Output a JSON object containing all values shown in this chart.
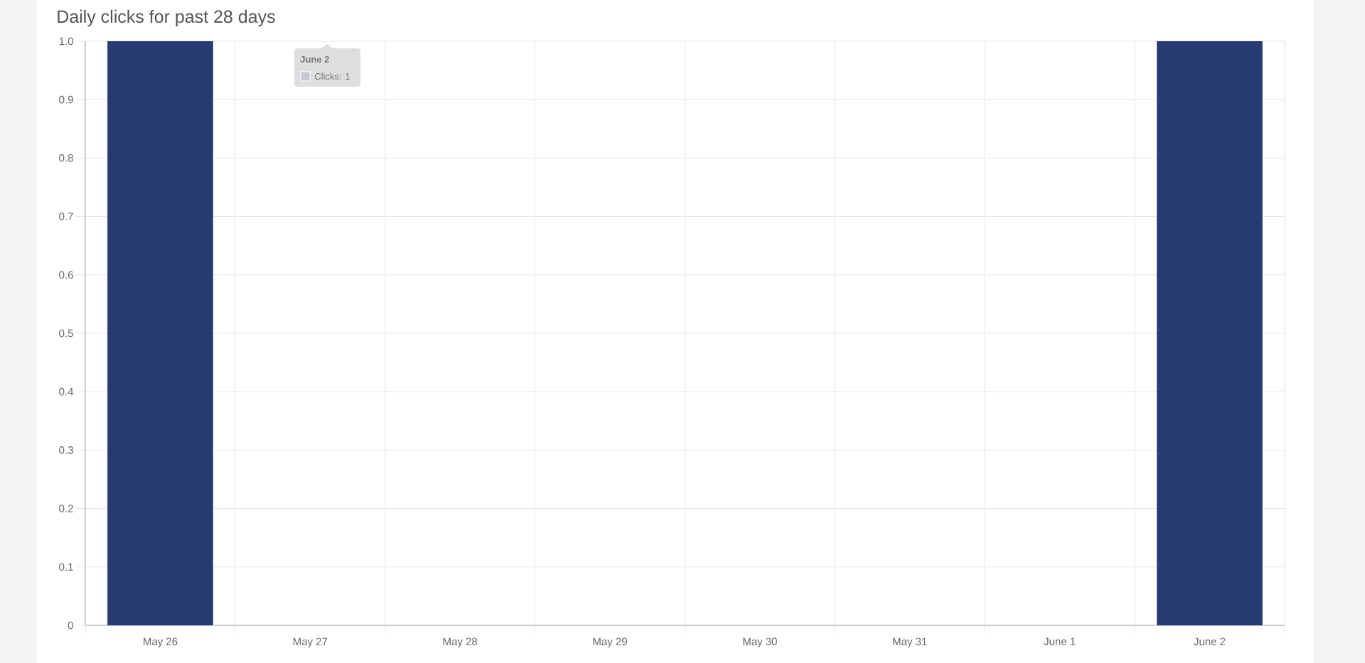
{
  "chart_data": {
    "type": "bar",
    "title": "Daily clicks for past 28 days",
    "categories": [
      "May 26",
      "May 27",
      "May 28",
      "May 29",
      "May 30",
      "May 31",
      "June 1",
      "June 2"
    ],
    "values": [
      1,
      0,
      0,
      0,
      0,
      0,
      0,
      1
    ],
    "color": "#273b73",
    "ylim": [
      0,
      1
    ],
    "yticks": [
      0,
      0.1,
      0.2,
      0.3,
      0.4,
      0.5,
      0.6,
      0.7,
      0.8,
      0.9,
      {
        "value": 1,
        "label": "1.0"
      }
    ],
    "grid": true,
    "annotations": [
      "June 2",
      "Clicks: 1"
    ]
  }
}
